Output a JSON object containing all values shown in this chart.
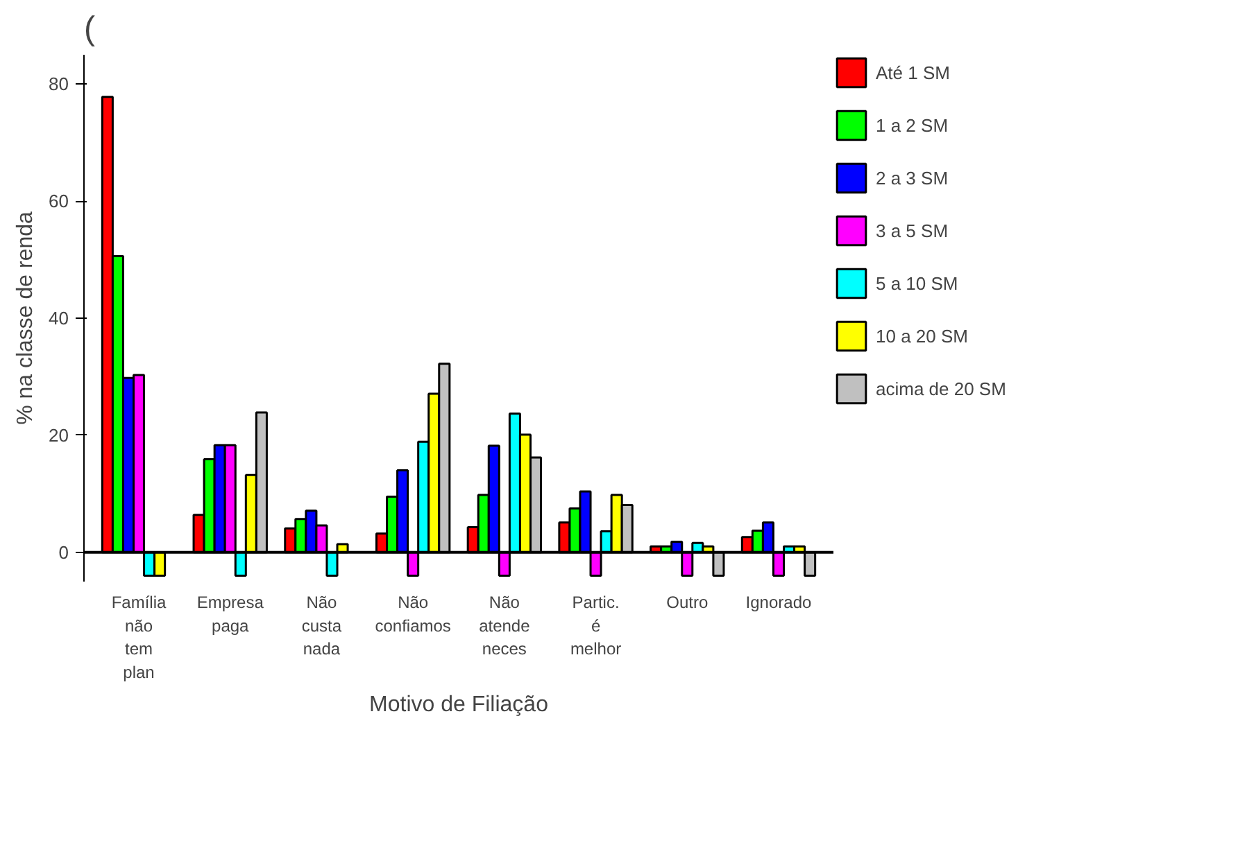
{
  "chart_data": {
    "type": "bar",
    "xlabel": "Motivo de Filiação",
    "ylabel": "% na classe de renda",
    "annotations": [
      "("
    ],
    "categories": [
      "Família não tem plan",
      "Empresa paga",
      "Não custa nada",
      "Não confiamos",
      "Não atende neces",
      "Partic. é melhor",
      "Outro",
      "Ignorado"
    ],
    "series": [
      {
        "name": "Até 1 SM",
        "color": "#ff0000",
        "values": [
          77.8,
          6.4,
          4.1,
          3.2,
          4.3,
          5.1,
          1.0,
          2.6
        ]
      },
      {
        "name": "1 a 2 SM",
        "color": "#00ff00",
        "values": [
          50.6,
          15.9,
          5.7,
          9.5,
          9.8,
          7.5,
          1.0,
          3.7
        ]
      },
      {
        "name": "2 a 3 SM",
        "color": "#0000ff",
        "values": [
          29.8,
          18.3,
          7.1,
          14.0,
          18.2,
          10.4,
          1.8,
          5.1
        ]
      },
      {
        "name": "3 a 5 SM",
        "color": "#ff00ff",
        "values": [
          30.3,
          18.3,
          4.6,
          -4,
          -4,
          -4,
          -4,
          -4
        ]
      },
      {
        "name": "5 a 10 SM",
        "color": "#00ffff",
        "values": [
          -4,
          -4,
          -4,
          18.9,
          23.7,
          3.6,
          1.6,
          1.0
        ]
      },
      {
        "name": "10 a 20 SM",
        "color": "#ffff00",
        "values": [
          -4,
          13.2,
          1.4,
          27.1,
          20.1,
          9.8,
          1.0,
          1.0
        ]
      },
      {
        "name": "acima de 20 SM",
        "color": "#c0c0c0",
        "values": [
          null,
          23.9,
          null,
          32.2,
          16.2,
          8.1,
          -4,
          -4
        ]
      }
    ],
    "ylim": [
      -5,
      85
    ],
    "yticks": [
      0,
      20,
      40,
      60,
      80
    ],
    "grid": false,
    "legend": "right"
  }
}
